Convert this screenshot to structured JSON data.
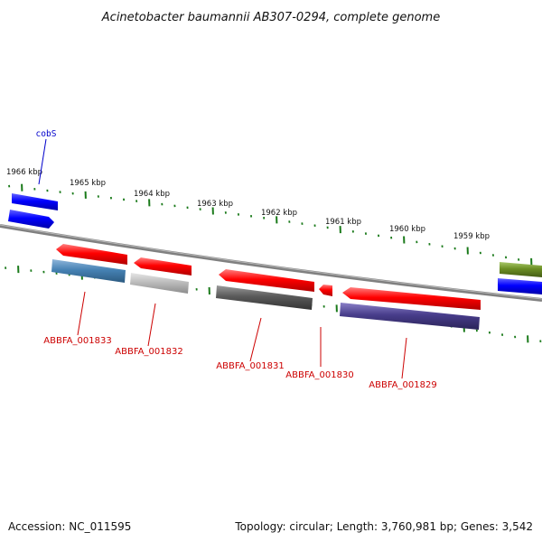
{
  "title": "Acinetobacter baumannii AB307-0294, complete genome",
  "accession": "Accession: NC_011595",
  "summary": "Topology: circular; Length: 3,760,981 bp; Genes: 3,542",
  "kbp_labels": [
    "1966 kbp",
    "1965 kbp",
    "1964 kbp",
    "1963 kbp",
    "1962 kbp",
    "1961 kbp",
    "1960 kbp",
    "1959 kbp"
  ],
  "gene_labels": [
    "ABBFA_001833",
    "ABBFA_001832",
    "ABBFA_001831",
    "ABBFA_001830",
    "ABBFA_001829"
  ],
  "cobs_label": "cobS",
  "colors": {
    "gene_red": "#ff0000",
    "gene_blue": "#0000ff",
    "steel_blue": "#4682b4",
    "light_gray": "#bdbdbd",
    "dark_gray": "#5a5a5a",
    "slate": "#483d8b",
    "olive": "#6b8e23",
    "tick_green": "#1a7a1a",
    "backbone": "#808080",
    "label_red": "#cc0000",
    "label_blue": "#0000cc"
  }
}
